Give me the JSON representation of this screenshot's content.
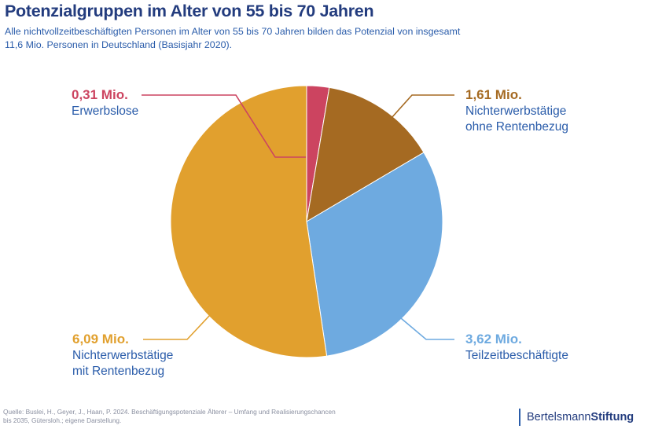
{
  "header": {
    "title": "Potenzialgruppen im Alter von 55 bis 70 Jahren",
    "subtitle": "Alle nichtvollzeitbeschäftigten Personen im Alter von 55 bis 70 Jahren bilden das Potenzial von insgesamt 11,6 Mio. Personen in Deutschland (Basisjahr 2020)."
  },
  "chart_data": {
    "type": "pie",
    "title": "Potenzialgruppen im Alter von 55 bis 70 Jahren",
    "unit": "Mio.",
    "total": 11.6,
    "slices": [
      {
        "label": "Erwerbslose",
        "value": 0.31,
        "value_label": "0,31 Mio.",
        "color": "#cc4460"
      },
      {
        "label": "Nichterwerbstätige ohne Rentenbezug",
        "value": 1.61,
        "value_label": "1,61 Mio.",
        "color": "#a56a22"
      },
      {
        "label": "Teilzeitbeschäftigte",
        "value": 3.62,
        "value_label": "3,62 Mio.",
        "color": "#6eaae0"
      },
      {
        "label": "Nichterwerbstätige mit Rentenbezug",
        "value": 6.09,
        "value_label": "6,09 Mio.",
        "color": "#e1a02e"
      }
    ]
  },
  "labels": [
    {
      "value": "0,31 Mio.",
      "line1": "Erwerbslose",
      "line2": ""
    },
    {
      "value": "1,61 Mio.",
      "line1": "Nichterwerbstätige",
      "line2": "ohne Rentenbezug"
    },
    {
      "value": "3,62 Mio.",
      "line1": "Teilzeitbeschäftigte",
      "line2": ""
    },
    {
      "value": "6,09 Mio.",
      "line1": "Nichterwerbstätige",
      "line2": "mit Rentenbezug"
    }
  ],
  "footer": {
    "source": "Quelle: Buslei, H., Geyer, J., Haan, P. 2024. Beschäftigungspotenziale Älterer – Umfang und Realisierungschancen bis 2035, Gütersloh.; eigene Darstellung.",
    "brand_regular": "Bertelsmann",
    "brand_bold": "Stiftung"
  }
}
